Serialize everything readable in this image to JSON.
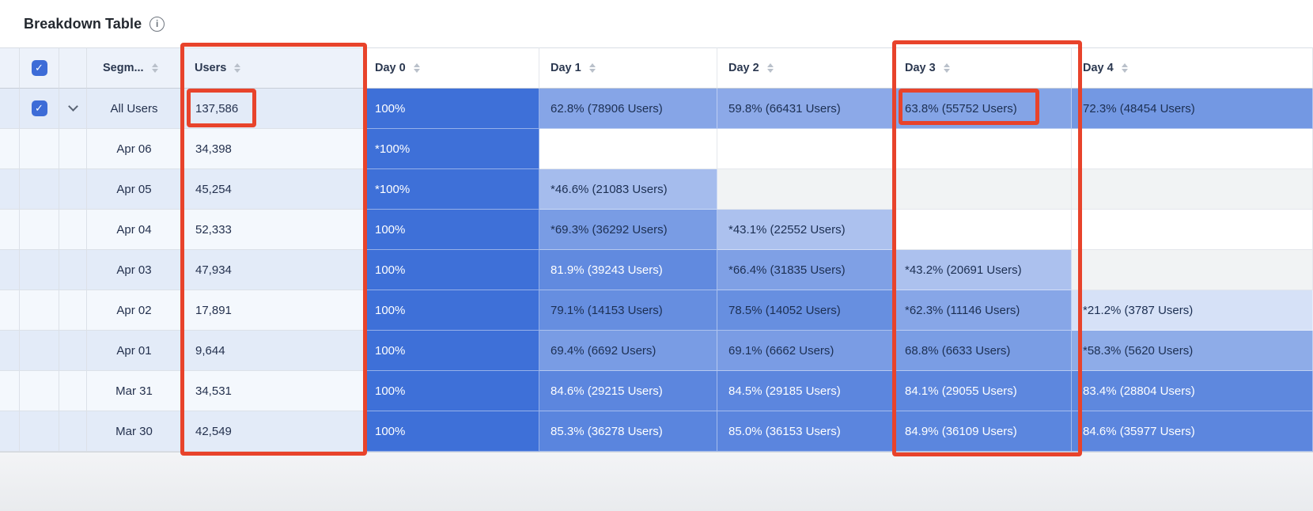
{
  "page": {
    "title": "Breakdown Table"
  },
  "colors": {
    "accent_blue": "#3E70D8",
    "cell_text_dark": "#1c2f52",
    "cell_text_light": "#ffffff",
    "stripe_dark": "#e3ebf8",
    "stripe_light": "#f4f8fd",
    "empty_dark": "#f1f3f4",
    "empty_light": "#ffffff",
    "header_left_bg": "#edf2fa",
    "checkbox_blue": "#3d6cd7",
    "highlight_red": "#e8432b"
  },
  "icons": [
    "info-icon",
    "sort-icon",
    "checkbox-checked-icon",
    "chevron-down-icon"
  ],
  "table": {
    "select_all_checked": true,
    "headers": {
      "segment": "Segm...",
      "users": "Users",
      "days": [
        "Day 0",
        "Day 1",
        "Day 2",
        "Day 3",
        "Day 4"
      ]
    },
    "rows": [
      {
        "segment": "All Users",
        "users": "137,586",
        "checked": true,
        "expandable": true,
        "days": [
          {
            "text": "100%",
            "pct": 100
          },
          {
            "text": "62.8% (78906 Users)",
            "pct": 62.8
          },
          {
            "text": "59.8% (66431 Users)",
            "pct": 59.8
          },
          {
            "text": "63.8% (55752 Users)",
            "pct": 63.8
          },
          {
            "text": "72.3% (48454 Users)",
            "pct": 72.3
          }
        ]
      },
      {
        "segment": "Apr 06",
        "users": "34,398",
        "days": [
          {
            "text": "*100%",
            "pct": 100
          },
          null,
          null,
          null,
          null
        ]
      },
      {
        "segment": "Apr 05",
        "users": "45,254",
        "days": [
          {
            "text": "*100%",
            "pct": 100
          },
          {
            "text": "*46.6% (21083 Users)",
            "pct": 46.6
          },
          null,
          null,
          null
        ]
      },
      {
        "segment": "Apr 04",
        "users": "52,333",
        "days": [
          {
            "text": "100%",
            "pct": 100
          },
          {
            "text": "*69.3% (36292 Users)",
            "pct": 69.3
          },
          {
            "text": "*43.1% (22552 Users)",
            "pct": 43.1
          },
          null,
          null
        ]
      },
      {
        "segment": "Apr 03",
        "users": "47,934",
        "days": [
          {
            "text": "100%",
            "pct": 100
          },
          {
            "text": "81.9% (39243 Users)",
            "pct": 81.9
          },
          {
            "text": "*66.4% (31835 Users)",
            "pct": 66.4
          },
          {
            "text": "*43.2% (20691 Users)",
            "pct": 43.2
          },
          null
        ]
      },
      {
        "segment": "Apr 02",
        "users": "17,891",
        "days": [
          {
            "text": "100%",
            "pct": 100
          },
          {
            "text": "79.1% (14153 Users)",
            "pct": 79.1
          },
          {
            "text": "78.5% (14052 Users)",
            "pct": 78.5
          },
          {
            "text": "*62.3% (11146 Users)",
            "pct": 62.3
          },
          {
            "text": "*21.2% (3787 Users)",
            "pct": 21.2
          }
        ]
      },
      {
        "segment": "Apr 01",
        "users": "9,644",
        "days": [
          {
            "text": "100%",
            "pct": 100
          },
          {
            "text": "69.4% (6692 Users)",
            "pct": 69.4
          },
          {
            "text": "69.1% (6662 Users)",
            "pct": 69.1
          },
          {
            "text": "68.8% (6633 Users)",
            "pct": 68.8
          },
          {
            "text": "*58.3% (5620 Users)",
            "pct": 58.3
          }
        ]
      },
      {
        "segment": "Mar 31",
        "users": "34,531",
        "days": [
          {
            "text": "100%",
            "pct": 100
          },
          {
            "text": "84.6% (29215 Users)",
            "pct": 84.6
          },
          {
            "text": "84.5% (29185 Users)",
            "pct": 84.5
          },
          {
            "text": "84.1% (29055 Users)",
            "pct": 84.1
          },
          {
            "text": "83.4% (28804 Users)",
            "pct": 83.4
          }
        ]
      },
      {
        "segment": "Mar 30",
        "users": "42,549",
        "days": [
          {
            "text": "100%",
            "pct": 100
          },
          {
            "text": "85.3% (36278 Users)",
            "pct": 85.3
          },
          {
            "text": "85.0% (36153 Users)",
            "pct": 85.0
          },
          {
            "text": "84.9% (36109 Users)",
            "pct": 84.9
          },
          {
            "text": "84.6% (35977 Users)",
            "pct": 84.6
          }
        ]
      }
    ]
  },
  "highlights": [
    {
      "target": "users-column"
    },
    {
      "target": "all-users-users-value"
    },
    {
      "target": "day3-column"
    },
    {
      "target": "all-users-day3-value"
    }
  ]
}
